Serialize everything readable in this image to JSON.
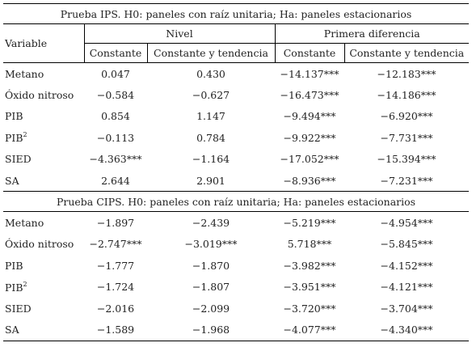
{
  "header": {
    "variable": "Variable",
    "nivel": "Nivel",
    "primera_diferencia": "Primera diferencia",
    "constante_1": "Constante",
    "constante_tendencia_1": "Constante y tendencia",
    "constante_2": "Constante",
    "constante_tendencia_2": "Constante y tendencia"
  },
  "panels": [
    {
      "title": "Prueba IPS. H0: paneles con raíz unitaria; Ha: paneles estacionarios",
      "rows": [
        {
          "variable": "Metano",
          "sup": "",
          "v": [
            "0.047",
            "0.430",
            "-14.137***",
            "-12.183***"
          ]
        },
        {
          "variable": "Óxido nitroso",
          "sup": "",
          "v": [
            "-0.584",
            "-0.627",
            "-16.473***",
            "-14.186***"
          ]
        },
        {
          "variable": "PIB",
          "sup": "",
          "v": [
            "0.854",
            "1.147",
            "-9.494***",
            "-6.920***"
          ]
        },
        {
          "variable": "PIB",
          "sup": "2",
          "v": [
            "-0.113",
            "0.784",
            "-9.922***",
            "-7.731***"
          ]
        },
        {
          "variable": "SIED",
          "sup": "",
          "v": [
            "-4.363***",
            "-1.164",
            "-17.052***",
            "-15.394***"
          ]
        },
        {
          "variable": "SA",
          "sup": "",
          "v": [
            "2.644",
            "2.901",
            "-8.936***",
            "-7.231***"
          ]
        }
      ]
    },
    {
      "title": "Prueba CIPS. H0: paneles con raíz unitaria; Ha: paneles estacionarios",
      "rows": [
        {
          "variable": "Metano",
          "sup": "",
          "v": [
            "-1.897",
            "-2.439",
            "-5.219***",
            "-4.954***"
          ]
        },
        {
          "variable": "Óxido nitroso",
          "sup": "",
          "v": [
            "-2.747***",
            "-3.019***",
            "5.718***",
            "-5.845***"
          ]
        },
        {
          "variable": "PIB",
          "sup": "",
          "v": [
            "-1.777",
            "-1.870",
            "-3.982***",
            "-4.152***"
          ]
        },
        {
          "variable": "PIB",
          "sup": "2",
          "v": [
            "-1.724",
            "-1.807",
            "-3.951***",
            "-4.121***"
          ]
        },
        {
          "variable": "SIED",
          "sup": "",
          "v": [
            "-2.016",
            "-2.099",
            "-3.720***",
            "-3.704***"
          ]
        },
        {
          "variable": "SA",
          "sup": "",
          "v": [
            "-1.589",
            "-1.968",
            "-4.077***",
            "-4.340***"
          ]
        }
      ]
    }
  ]
}
